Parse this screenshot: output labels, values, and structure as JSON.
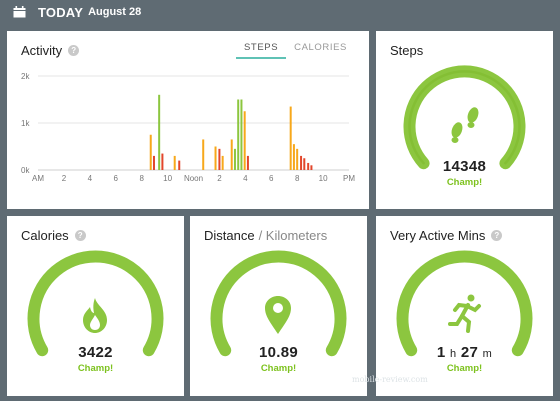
{
  "header": {
    "title": "TODAY",
    "date": "August 28",
    "calendar_icon": "calendar-icon"
  },
  "activity": {
    "title": "Activity",
    "tabs": [
      "STEPS",
      "CALORIES"
    ],
    "active_tab": "STEPS",
    "chart_data": {
      "type": "bar",
      "ylabel": "",
      "ylim": [
        0,
        2000
      ],
      "ytick_labels": [
        "2k",
        "1k",
        "0k"
      ],
      "xtick_labels": [
        "AM",
        "2",
        "4",
        "6",
        "8",
        "10",
        "Noon",
        "2",
        "4",
        "6",
        "8",
        "10",
        "PM"
      ],
      "colors": {
        "green": "#8cc63f",
        "orange": "#f7a81b",
        "red": "#e2462b"
      },
      "bars": [
        {
          "hour": 8.7,
          "value": 750,
          "color": "orange"
        },
        {
          "hour": 8.95,
          "value": 300,
          "color": "red"
        },
        {
          "hour": 9.35,
          "value": 1600,
          "color": "green"
        },
        {
          "hour": 9.6,
          "value": 350,
          "color": "red"
        },
        {
          "hour": 10.55,
          "value": 300,
          "color": "orange"
        },
        {
          "hour": 10.9,
          "value": 200,
          "color": "red"
        },
        {
          "hour": 12.75,
          "value": 650,
          "color": "orange"
        },
        {
          "hour": 13.7,
          "value": 500,
          "color": "orange"
        },
        {
          "hour": 14.0,
          "value": 450,
          "color": "red"
        },
        {
          "hour": 14.25,
          "value": 300,
          "color": "orange"
        },
        {
          "hour": 14.95,
          "value": 650,
          "color": "orange"
        },
        {
          "hour": 15.2,
          "value": 450,
          "color": "green"
        },
        {
          "hour": 15.45,
          "value": 1500,
          "color": "green"
        },
        {
          "hour": 15.7,
          "value": 1500,
          "color": "green"
        },
        {
          "hour": 15.95,
          "value": 1250,
          "color": "orange"
        },
        {
          "hour": 16.2,
          "value": 300,
          "color": "red"
        },
        {
          "hour": 19.5,
          "value": 1350,
          "color": "orange"
        },
        {
          "hour": 19.75,
          "value": 550,
          "color": "orange"
        },
        {
          "hour": 20.0,
          "value": 450,
          "color": "orange"
        },
        {
          "hour": 20.3,
          "value": 300,
          "color": "red"
        },
        {
          "hour": 20.55,
          "value": 250,
          "color": "red"
        },
        {
          "hour": 20.85,
          "value": 150,
          "color": "red"
        },
        {
          "hour": 21.1,
          "value": 100,
          "color": "red"
        }
      ]
    }
  },
  "cards": {
    "steps": {
      "title": "Steps",
      "value": "14348",
      "status": "Champ!",
      "icon": "footsteps-icon",
      "progress": 1.0
    },
    "calories": {
      "title": "Calories",
      "value": "3422",
      "status": "Champ!",
      "icon": "flame-icon",
      "progress": 1.0
    },
    "distance": {
      "title": "Distance",
      "unit": "/ Kilometers",
      "value": "10.89",
      "status": "Champ!",
      "icon": "location-pin-icon",
      "progress": 1.0
    },
    "active": {
      "title": "Very Active Mins",
      "hours": "1",
      "h_label": "h",
      "minutes": "27",
      "m_label": "m",
      "status": "Champ!",
      "icon": "running-icon",
      "progress": 1.0
    }
  },
  "colors": {
    "accent": "#8cc63f",
    "accent_dark": "#6fb320",
    "background": "#5f6b73",
    "tab_underline": "#5fc2b5"
  },
  "watermark": "mobile-review.com"
}
